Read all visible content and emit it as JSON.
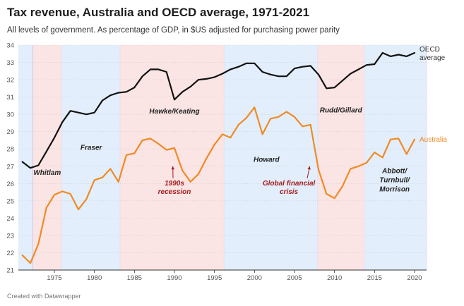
{
  "title": "Tax revenue, Australia and OECD average, 1971-2021",
  "subtitle": "All levels of government. As percentage of GDP, in $US adjusted for purchasing power parity",
  "credit": "Created with Datawrapper",
  "chart_data": {
    "type": "line",
    "x": [
      1971,
      1972,
      1973,
      1974,
      1975,
      1976,
      1977,
      1978,
      1979,
      1980,
      1981,
      1982,
      1983,
      1984,
      1985,
      1986,
      1987,
      1988,
      1989,
      1990,
      1991,
      1992,
      1993,
      1994,
      1995,
      1996,
      1997,
      1998,
      1999,
      2000,
      2001,
      2002,
      2003,
      2004,
      2005,
      2006,
      2007,
      2008,
      2009,
      2010,
      2011,
      2012,
      2013,
      2014,
      2015,
      2016,
      2017,
      2018,
      2019,
      2020
    ],
    "series": [
      {
        "name": "OECD average",
        "label": "OECD average",
        "color": "#111111",
        "values": [
          27.25,
          26.9,
          27.05,
          27.85,
          28.65,
          29.55,
          30.2,
          30.1,
          30.0,
          30.1,
          30.8,
          31.1,
          31.25,
          31.3,
          31.55,
          32.2,
          32.6,
          32.6,
          32.45,
          30.85,
          31.3,
          31.6,
          32.0,
          32.05,
          32.15,
          32.35,
          32.6,
          32.75,
          32.95,
          32.95,
          32.45,
          32.3,
          32.2,
          32.2,
          32.65,
          32.75,
          32.8,
          32.3,
          31.5,
          31.55,
          31.95,
          32.35,
          32.6,
          32.85,
          32.9,
          33.55,
          33.35,
          33.45,
          33.35,
          33.55
        ]
      },
      {
        "name": "Australia",
        "label": "Australia",
        "color": "#f08a24",
        "values": [
          21.85,
          21.4,
          22.5,
          24.6,
          25.35,
          25.55,
          25.4,
          24.5,
          25.1,
          26.2,
          26.35,
          26.85,
          26.1,
          27.65,
          27.75,
          28.5,
          28.6,
          28.3,
          27.95,
          28.05,
          26.75,
          26.1,
          26.55,
          27.45,
          28.25,
          28.85,
          28.65,
          29.4,
          29.8,
          30.4,
          28.85,
          29.75,
          29.85,
          30.15,
          29.85,
          29.3,
          29.4,
          26.8,
          25.4,
          25.15,
          25.85,
          26.85,
          27.0,
          27.2,
          27.8,
          27.5,
          28.55,
          28.6,
          27.7,
          28.55
        ]
      }
    ],
    "ylim": [
      21,
      34
    ],
    "yticks": [
      21,
      22,
      23,
      24,
      25,
      26,
      27,
      28,
      29,
      30,
      31,
      32,
      33,
      34
    ],
    "xlim": [
      1970.5,
      2021.5
    ],
    "xticks": [
      1975,
      1980,
      1985,
      1990,
      1995,
      2000,
      2005,
      2010,
      2015,
      2020
    ],
    "periods": [
      {
        "label": "Whitlam",
        "start": 1972.3,
        "end": 1975.9,
        "color": "#fbe4e4"
      },
      {
        "label": "Fraser",
        "start": 1975.9,
        "end": 1983.2,
        "color": "#e2eefb"
      },
      {
        "label": "Hawke/Keating",
        "start": 1983.2,
        "end": 1996.2,
        "color": "#fbe4e4"
      },
      {
        "label": "Howard",
        "start": 1996.2,
        "end": 2007.9,
        "color": "#e2eefb"
      },
      {
        "label": "Rudd/Gillard",
        "start": 2007.9,
        "end": 2013.7,
        "color": "#fbe4e4"
      },
      {
        "label": "Abbott/ Turnbull/ Morrison",
        "label_lines": [
          "Abbott/",
          "Turnbull/",
          "Morrison"
        ],
        "start": 2013.7,
        "end": 2021.5,
        "color": "#e2eefb"
      }
    ],
    "pre_period_color": "#e2eefb",
    "annotations": [
      {
        "lines": [
          "1990s",
          "recession"
        ],
        "x": 1990.0,
        "y": 25.9,
        "arrow_to": [
          1989.8,
          27.0
        ]
      },
      {
        "lines": [
          "Global financial",
          "crisis"
        ],
        "x": 2004.3,
        "y": 25.9,
        "arrow_to": [
          2006.9,
          27.0
        ]
      }
    ],
    "xlabel": "",
    "ylabel": ""
  }
}
